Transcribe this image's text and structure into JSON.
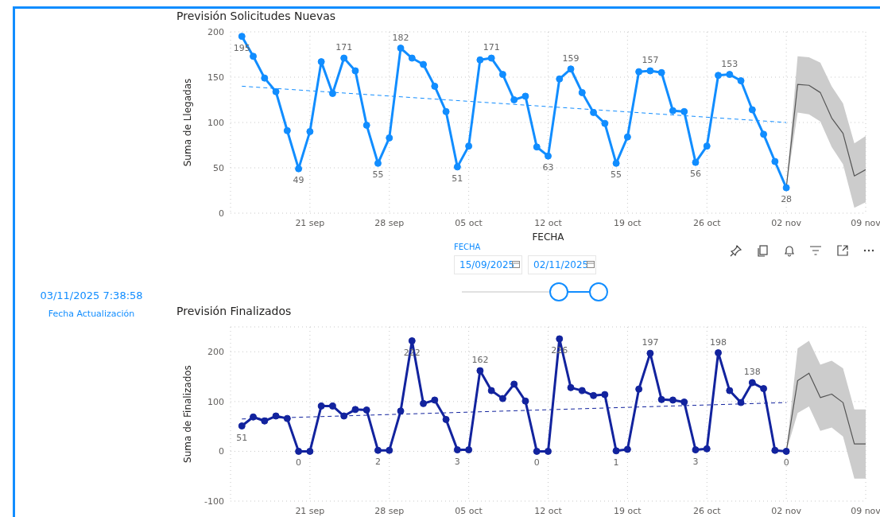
{
  "chart_data": [
    {
      "type": "line",
      "title": "Previsión Solicitudes Nuevas",
      "xlabel": "FECHA",
      "ylabel": "Suma de Llegadas",
      "grid": true,
      "marker": "circle",
      "xlim": [
        "2025-09-14",
        "2025-11-09"
      ],
      "ylim": [
        0,
        200
      ],
      "yticks": [
        0,
        50,
        100,
        150,
        200
      ],
      "xticks": [
        {
          "value": "2025-09-21",
          "label": "21 sep"
        },
        {
          "value": "2025-09-28",
          "label": "28 sep"
        },
        {
          "value": "2025-10-05",
          "label": "05 oct"
        },
        {
          "value": "2025-10-12",
          "label": "12 oct"
        },
        {
          "value": "2025-10-19",
          "label": "19 oct"
        },
        {
          "value": "2025-10-26",
          "label": "26 oct"
        },
        {
          "value": "2025-11-02",
          "label": "02 nov"
        },
        {
          "value": "2025-11-09",
          "label": "09 nov"
        }
      ],
      "x": [
        "2025-09-15",
        "2025-09-16",
        "2025-09-17",
        "2025-09-18",
        "2025-09-19",
        "2025-09-20",
        "2025-09-21",
        "2025-09-22",
        "2025-09-23",
        "2025-09-24",
        "2025-09-25",
        "2025-09-26",
        "2025-09-27",
        "2025-09-28",
        "2025-09-29",
        "2025-09-30",
        "2025-10-01",
        "2025-10-02",
        "2025-10-03",
        "2025-10-04",
        "2025-10-05",
        "2025-10-06",
        "2025-10-07",
        "2025-10-08",
        "2025-10-09",
        "2025-10-10",
        "2025-10-11",
        "2025-10-12",
        "2025-10-13",
        "2025-10-14",
        "2025-10-15",
        "2025-10-16",
        "2025-10-17",
        "2025-10-18",
        "2025-10-19",
        "2025-10-20",
        "2025-10-21",
        "2025-10-22",
        "2025-10-23",
        "2025-10-24",
        "2025-10-25",
        "2025-10-26",
        "2025-10-27",
        "2025-10-28",
        "2025-10-29",
        "2025-10-30",
        "2025-10-31",
        "2025-11-01",
        "2025-11-02"
      ],
      "series": [
        {
          "color": "#118dff",
          "values": [
            195,
            173,
            149,
            134,
            91,
            49,
            90,
            167,
            132,
            171,
            157,
            97,
            55,
            83,
            182,
            171,
            164,
            140,
            112,
            51,
            74,
            169,
            171,
            153,
            125,
            129,
            73,
            63,
            148,
            159,
            133,
            111,
            99,
            55,
            84,
            156,
            157,
            155,
            113,
            112,
            56,
            74,
            152,
            153,
            146,
            114,
            87,
            57,
            28
          ],
          "value_labels": [
            "195",
            null,
            null,
            null,
            null,
            "49",
            null,
            null,
            null,
            "171",
            null,
            null,
            "55",
            null,
            "182",
            null,
            null,
            null,
            null,
            "51",
            null,
            null,
            "171",
            null,
            null,
            null,
            null,
            "63",
            null,
            "159",
            null,
            null,
            null,
            "55",
            null,
            null,
            "157",
            null,
            null,
            null,
            "56",
            null,
            null,
            "153",
            null,
            null,
            null,
            null,
            "28"
          ]
        },
        {
          "type": "line",
          "color": "#118dff",
          "line_style": "dashed",
          "marker": "none",
          "x": [
            "2025-09-15",
            "2025-11-02"
          ],
          "values": [
            140,
            100
          ]
        },
        {
          "type": "line",
          "color": "#555555",
          "marker": "none",
          "x": [
            "2025-11-02",
            "2025-11-03",
            "2025-11-04",
            "2025-11-05",
            "2025-11-06",
            "2025-11-07",
            "2025-11-08",
            "2025-11-09"
          ],
          "values": [
            28,
            142,
            141,
            133,
            105,
            88,
            41,
            48
          ],
          "lower": [
            28,
            111,
            109,
            101,
            73,
            54,
            6,
            12
          ],
          "upper": [
            28,
            173,
            172,
            166,
            140,
            121,
            77,
            85
          ]
        }
      ]
    },
    {
      "type": "line",
      "title": "Previsión Finalizados",
      "ylabel": "Suma de Finalizados",
      "grid": true,
      "marker": "circle",
      "xlim": [
        "2025-09-14",
        "2025-11-09"
      ],
      "ylim": [
        -100,
        250
      ],
      "yticks": [
        -100,
        0,
        100,
        200
      ],
      "xticks": [
        {
          "value": "2025-09-21",
          "label": "21 sep"
        },
        {
          "value": "2025-09-28",
          "label": "28 sep"
        },
        {
          "value": "2025-10-05",
          "label": "05 oct"
        },
        {
          "value": "2025-10-12",
          "label": "12 oct"
        },
        {
          "value": "2025-10-19",
          "label": "19 oct"
        },
        {
          "value": "2025-10-26",
          "label": "26 oct"
        },
        {
          "value": "2025-11-02",
          "label": "02 nov"
        },
        {
          "value": "2025-11-09",
          "label": "09 nov"
        }
      ],
      "x": [
        "2025-09-15",
        "2025-09-16",
        "2025-09-17",
        "2025-09-18",
        "2025-09-19",
        "2025-09-20",
        "2025-09-21",
        "2025-09-22",
        "2025-09-23",
        "2025-09-24",
        "2025-09-25",
        "2025-09-26",
        "2025-09-27",
        "2025-09-28",
        "2025-09-29",
        "2025-09-30",
        "2025-10-01",
        "2025-10-02",
        "2025-10-03",
        "2025-10-04",
        "2025-10-05",
        "2025-10-06",
        "2025-10-07",
        "2025-10-08",
        "2025-10-09",
        "2025-10-10",
        "2025-10-11",
        "2025-10-12",
        "2025-10-13",
        "2025-10-14",
        "2025-10-15",
        "2025-10-16",
        "2025-10-17",
        "2025-10-18",
        "2025-10-19",
        "2025-10-20",
        "2025-10-21",
        "2025-10-22",
        "2025-10-23",
        "2025-10-24",
        "2025-10-25",
        "2025-10-26",
        "2025-10-27",
        "2025-10-28",
        "2025-10-29",
        "2025-10-30",
        "2025-10-31",
        "2025-11-01",
        "2025-11-02"
      ],
      "series": [
        {
          "color": "#12239e",
          "values": [
            51,
            69,
            61,
            71,
            66,
            0,
            0,
            91,
            91,
            71,
            84,
            83,
            2,
            2,
            81,
            222,
            96,
            103,
            64,
            3,
            3,
            162,
            122,
            106,
            135,
            101,
            0,
            0,
            226,
            128,
            122,
            112,
            114,
            1,
            4,
            125,
            197,
            104,
            103,
            99,
            3,
            5,
            198,
            122,
            98,
            138,
            126,
            2,
            0
          ],
          "value_labels": [
            "51",
            null,
            null,
            null,
            null,
            "0",
            null,
            null,
            null,
            null,
            null,
            null,
            "2",
            null,
            null,
            "222",
            null,
            null,
            null,
            "3",
            null,
            "162",
            null,
            null,
            null,
            null,
            "0",
            null,
            "226",
            null,
            null,
            null,
            null,
            "1",
            null,
            null,
            "197",
            null,
            null,
            null,
            "3",
            null,
            "198",
            null,
            null,
            "138",
            null,
            null,
            "0"
          ]
        },
        {
          "type": "line",
          "color": "#12239e",
          "line_style": "dashed",
          "marker": "none",
          "x": [
            "2025-09-15",
            "2025-11-02"
          ],
          "values": [
            65,
            98
          ]
        },
        {
          "type": "line",
          "color": "#555555",
          "marker": "none",
          "x": [
            "2025-11-02",
            "2025-11-03",
            "2025-11-04",
            "2025-11-05",
            "2025-11-06",
            "2025-11-07",
            "2025-11-08",
            "2025-11-09"
          ],
          "values": [
            0,
            142,
            157,
            108,
            115,
            98,
            15,
            15
          ],
          "lower": [
            0,
            77,
            90,
            41,
            48,
            30,
            -55,
            -55
          ],
          "upper": [
            0,
            207,
            222,
            174,
            182,
            167,
            84,
            84
          ]
        }
      ]
    },
    {
      "type": "other",
      "annotations": [
        "03/11/2025 7:38:58",
        "Fecha Actualización",
        "FECHA",
        "15/09/2025",
        "02/11/2025"
      ]
    }
  ]
}
